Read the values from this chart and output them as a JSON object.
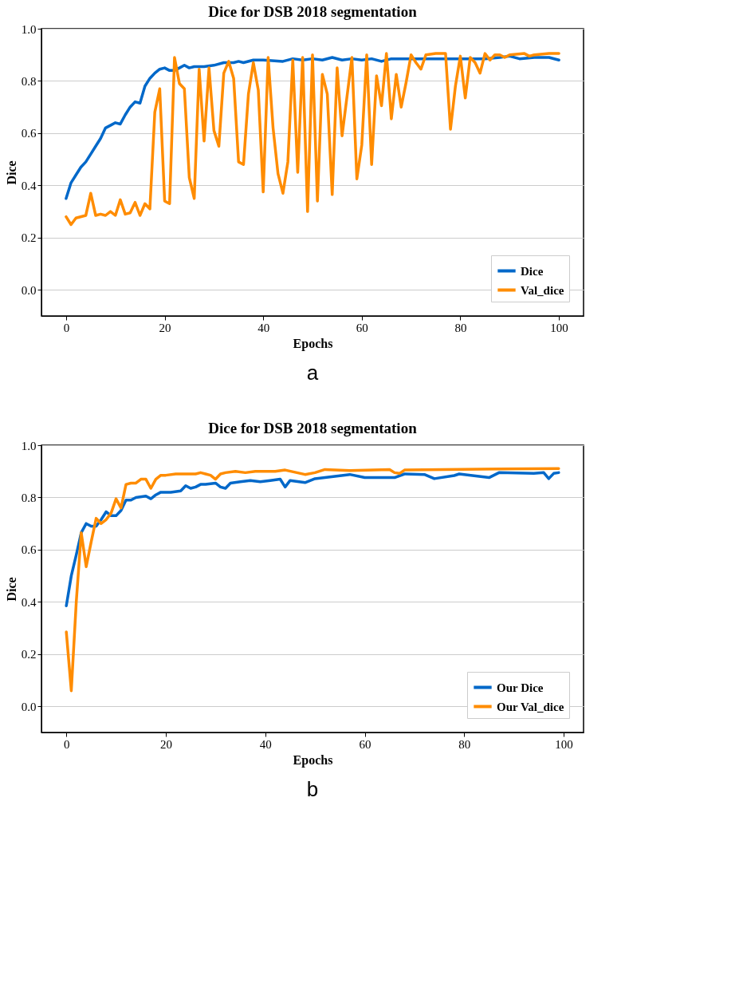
{
  "chart_data": [
    {
      "type": "line",
      "title": "Dice for DSB 2018 segmentation",
      "xlabel": "Epochs",
      "ylabel": "Dice",
      "annotations": [
        "a"
      ],
      "xlim": [
        -5,
        105
      ],
      "xticks": [
        0,
        20,
        40,
        60,
        80,
        100
      ],
      "ylim": [
        -0.1,
        1.0
      ],
      "yticks": [
        {
          "value": 0.0,
          "label": "0.0"
        },
        {
          "value": 0.2,
          "label": "0.2"
        },
        {
          "value": 0.4,
          "label": "0.4"
        },
        {
          "value": 0.6,
          "label": "0.6"
        },
        {
          "value": 0.8,
          "label": "0.8"
        },
        {
          "value": 1.0,
          "label": "1.0"
        }
      ],
      "grid": "y",
      "legend": "bottom right",
      "marker": "none",
      "line_style": "solid",
      "series": [
        {
          "name": "Dice",
          "color": "#0068c9",
          "x": [
            0,
            1,
            2,
            3,
            4,
            5,
            6,
            7,
            8,
            9,
            10,
            11,
            12,
            13,
            14,
            15,
            16,
            17,
            18,
            19,
            20,
            21,
            22,
            23,
            24,
            25,
            26,
            28,
            30,
            32,
            34,
            35,
            36,
            38,
            40,
            44,
            46,
            48,
            50,
            52,
            54,
            56,
            58,
            60,
            62,
            64,
            66,
            70,
            75,
            80,
            85,
            88,
            90,
            92,
            95,
            98,
            100
          ],
          "values": [
            0.35,
            0.41,
            0.44,
            0.47,
            0.49,
            0.52,
            0.55,
            0.58,
            0.62,
            0.63,
            0.64,
            0.635,
            0.67,
            0.7,
            0.72,
            0.715,
            0.78,
            0.81,
            0.83,
            0.845,
            0.85,
            0.84,
            0.84,
            0.85,
            0.86,
            0.85,
            0.855,
            0.855,
            0.86,
            0.87,
            0.87,
            0.875,
            0.87,
            0.88,
            0.88,
            0.875,
            0.885,
            0.88,
            0.885,
            0.88,
            0.89,
            0.88,
            0.885,
            0.88,
            0.885,
            0.875,
            0.885,
            0.885,
            0.885,
            0.885,
            0.885,
            0.89,
            0.895,
            0.885,
            0.89,
            0.89,
            0.88
          ]
        },
        {
          "name": "Val_dice",
          "color": "#ff8c00",
          "x": [
            0,
            1,
            2,
            4,
            5,
            6,
            7,
            8,
            9,
            10,
            11,
            12,
            13,
            14,
            15,
            16,
            17,
            18,
            19,
            20,
            21,
            22,
            23,
            24,
            25,
            26,
            27,
            28,
            29,
            30,
            31,
            32,
            33,
            34,
            35,
            36,
            37,
            38,
            39,
            40,
            41,
            42,
            43,
            44,
            45,
            46,
            47,
            48,
            49,
            50,
            51,
            52,
            53,
            54,
            55,
            56,
            58,
            59,
            60,
            61,
            62,
            63,
            64,
            65,
            66,
            67,
            68,
            69,
            70,
            71,
            72,
            73,
            75,
            76,
            77,
            78,
            79,
            80,
            81,
            82,
            83,
            84,
            85,
            86,
            87,
            88,
            89,
            90,
            93,
            94,
            95,
            98,
            100
          ],
          "values": [
            0.28,
            0.25,
            0.275,
            0.285,
            0.37,
            0.285,
            0.29,
            0.285,
            0.3,
            0.285,
            0.345,
            0.29,
            0.295,
            0.335,
            0.285,
            0.33,
            0.31,
            0.68,
            0.77,
            0.34,
            0.33,
            0.89,
            0.79,
            0.77,
            0.43,
            0.35,
            0.845,
            0.57,
            0.85,
            0.61,
            0.55,
            0.83,
            0.875,
            0.81,
            0.49,
            0.48,
            0.75,
            0.87,
            0.765,
            0.375,
            0.89,
            0.62,
            0.445,
            0.37,
            0.49,
            0.88,
            0.45,
            0.89,
            0.3,
            0.9,
            0.34,
            0.825,
            0.75,
            0.365,
            0.85,
            0.59,
            0.89,
            0.425,
            0.555,
            0.9,
            0.48,
            0.82,
            0.705,
            0.905,
            0.655,
            0.825,
            0.7,
            0.795,
            0.9,
            0.87,
            0.845,
            0.9,
            0.905,
            0.905,
            0.905,
            0.615,
            0.78,
            0.895,
            0.735,
            0.89,
            0.87,
            0.83,
            0.905,
            0.88,
            0.9,
            0.9,
            0.89,
            0.9,
            0.905,
            0.895,
            0.9,
            0.905,
            0.905
          ]
        }
      ]
    },
    {
      "type": "line",
      "title": "Dice for DSB 2018 segmentation",
      "xlabel": "Epochs",
      "ylabel": "Dice",
      "annotations": [
        "b"
      ],
      "xlim": [
        -5,
        104
      ],
      "xticks": [
        0,
        20,
        40,
        60,
        80,
        100
      ],
      "ylim": [
        -0.1,
        1.0
      ],
      "yticks": [
        {
          "value": 0.0,
          "label": "0.0"
        },
        {
          "value": 0.2,
          "label": "0.2"
        },
        {
          "value": 0.4,
          "label": "0.4"
        },
        {
          "value": 0.6,
          "label": "0.6"
        },
        {
          "value": 0.8,
          "label": "0.8"
        },
        {
          "value": 1.0,
          "label": "1.0"
        }
      ],
      "grid": "y",
      "legend": "bottom right",
      "marker": "none",
      "line_style": "solid",
      "series": [
        {
          "name": "Our Dice",
          "color": "#0068c9",
          "x": [
            0,
            1,
            2,
            3,
            4,
            5,
            6,
            7,
            8,
            9,
            10,
            11,
            12,
            13,
            14,
            16,
            17,
            18,
            19,
            21,
            23,
            24,
            25,
            26,
            27,
            28,
            30,
            31,
            32,
            33,
            35,
            37,
            39,
            41,
            43,
            44,
            45,
            48,
            50,
            57,
            60,
            66,
            68,
            72,
            74,
            78,
            79,
            85,
            87,
            94,
            96,
            97,
            98,
            99
          ],
          "values": [
            0.385,
            0.5,
            0.58,
            0.665,
            0.7,
            0.69,
            0.69,
            0.715,
            0.745,
            0.73,
            0.73,
            0.75,
            0.79,
            0.79,
            0.8,
            0.805,
            0.795,
            0.81,
            0.82,
            0.82,
            0.825,
            0.845,
            0.835,
            0.84,
            0.85,
            0.85,
            0.855,
            0.84,
            0.835,
            0.855,
            0.86,
            0.865,
            0.86,
            0.865,
            0.87,
            0.84,
            0.865,
            0.857,
            0.872,
            0.888,
            0.876,
            0.876,
            0.89,
            0.888,
            0.872,
            0.884,
            0.89,
            0.876,
            0.895,
            0.892,
            0.895,
            0.872,
            0.892,
            0.895
          ]
        },
        {
          "name": "Our Val_dice",
          "color": "#ff8c00",
          "x": [
            0,
            1,
            2,
            3,
            4,
            5,
            6,
            7,
            8,
            9,
            10,
            11,
            12,
            13,
            14,
            15,
            16,
            17,
            18,
            19,
            20,
            22,
            24,
            26,
            27,
            28,
            29,
            30,
            31,
            32,
            34,
            36,
            38,
            40,
            42,
            44,
            48,
            50,
            52,
            57,
            65,
            66,
            67,
            68,
            87,
            99
          ],
          "values": [
            0.285,
            0.06,
            0.4,
            0.665,
            0.535,
            0.63,
            0.72,
            0.7,
            0.715,
            0.74,
            0.795,
            0.76,
            0.85,
            0.855,
            0.855,
            0.87,
            0.87,
            0.835,
            0.87,
            0.885,
            0.885,
            0.89,
            0.89,
            0.89,
            0.895,
            0.89,
            0.885,
            0.87,
            0.89,
            0.895,
            0.9,
            0.895,
            0.9,
            0.9,
            0.9,
            0.905,
            0.888,
            0.895,
            0.907,
            0.903,
            0.907,
            0.895,
            0.892,
            0.905,
            0.909,
            0.911
          ]
        }
      ]
    }
  ]
}
